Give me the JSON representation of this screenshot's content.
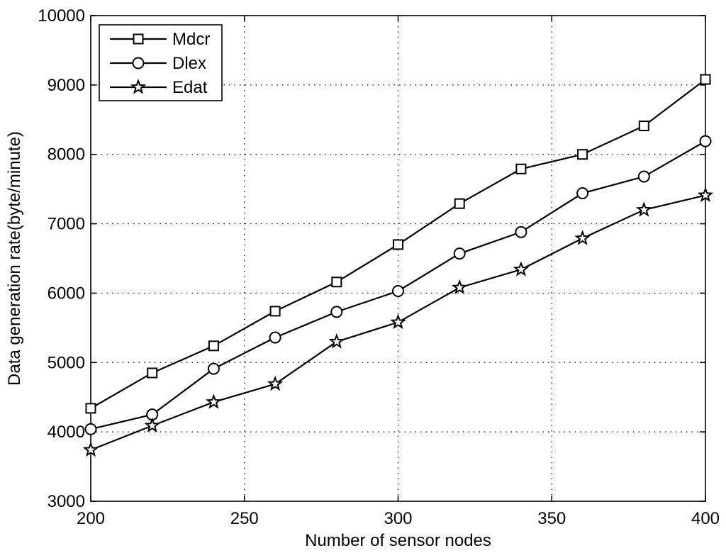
{
  "chart_data": {
    "type": "line",
    "title": "",
    "xlabel": "Number of sensor nodes",
    "ylabel": "Data generation rate(byte/minute)",
    "xlim": [
      200,
      400
    ],
    "ylim": [
      3000,
      10000
    ],
    "xticks": [
      200,
      250,
      300,
      350,
      400
    ],
    "yticks": [
      3000,
      4000,
      5000,
      6000,
      7000,
      8000,
      9000,
      10000
    ],
    "grid": true,
    "legend_position": "top-left",
    "x": [
      200,
      220,
      240,
      260,
      280,
      300,
      320,
      340,
      360,
      380,
      400
    ],
    "series": [
      {
        "name": "Mdcr",
        "marker": "square",
        "values": [
          4340,
          4850,
          5240,
          5740,
          6160,
          6700,
          7290,
          7790,
          8000,
          8410,
          9080
        ]
      },
      {
        "name": "Dlex",
        "marker": "circle",
        "values": [
          4040,
          4250,
          4910,
          5360,
          5730,
          6030,
          6570,
          6880,
          7440,
          7680,
          8190
        ]
      },
      {
        "name": "Edat",
        "marker": "star",
        "values": [
          3740,
          4090,
          4430,
          4690,
          5300,
          5580,
          6080,
          6340,
          6790,
          7200,
          7410
        ]
      }
    ]
  }
}
